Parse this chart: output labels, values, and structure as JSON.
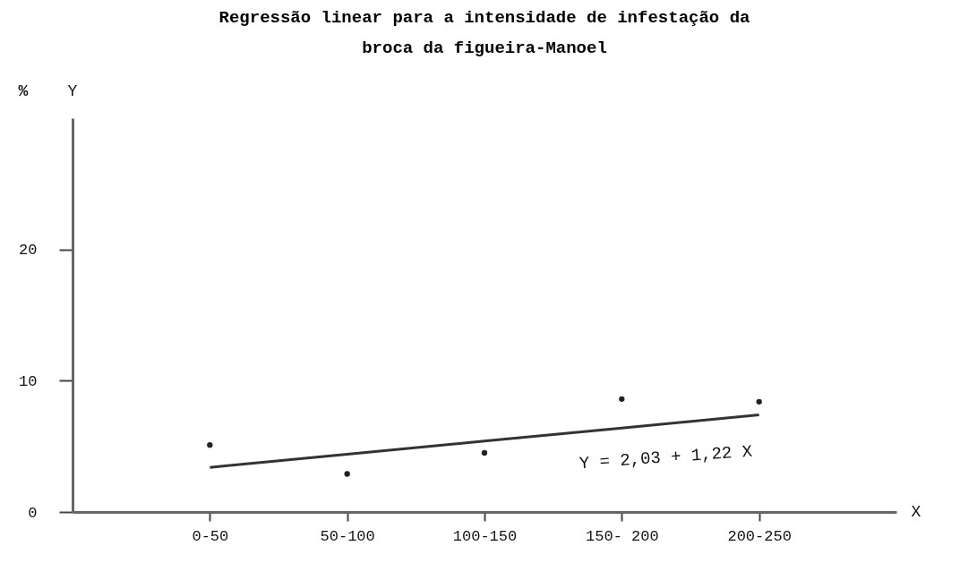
{
  "chart_data": {
    "type": "scatter",
    "title": "Regressão linear para a intensidade de infestação da\nbroca da figueira-Manoel",
    "xlabel": "X",
    "ylabel": "Y",
    "annotations": [
      "%",
      "Y = 2,03 + 1,22 X"
    ],
    "categories": [
      "0-50",
      "50-100",
      "100-150",
      "150- 200",
      "200-250"
    ],
    "series": [
      {
        "color": "#222222",
        "marker": "circle",
        "values": [
          5.1,
          2.9,
          4.5,
          8.6,
          8.4
        ]
      },
      {
        "type": "line",
        "color": "#333333",
        "values": [
          3.4,
          4.4,
          5.4,
          6.4,
          7.4
        ]
      }
    ],
    "ylim": [
      0,
      30
    ],
    "yticks": [
      0,
      10,
      20
    ],
    "grid": false,
    "line_style": "solid"
  }
}
